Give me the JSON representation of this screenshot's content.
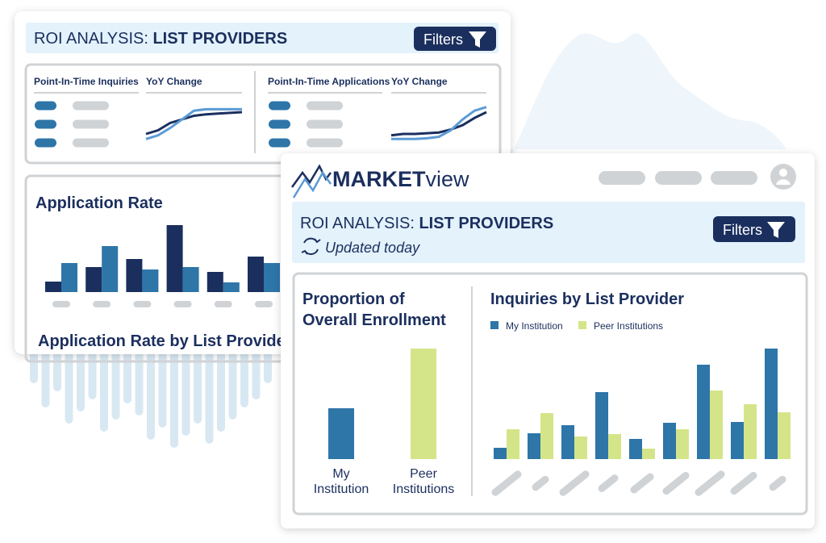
{
  "back_window": {
    "title": {
      "prefix": "ROI ANALYSIS:",
      "emphasis": "LIST PROVIDERS"
    },
    "filters": "Filters",
    "panels": [
      {
        "label": "Point-In-Time Inquiries",
        "trend_label": "YoY Change",
        "trend": [
          {
            "color": "#1b2f5e",
            "values": [
              10,
              15,
              25,
              30,
              35,
              37,
              38,
              39,
              40
            ]
          },
          {
            "color": "#5b9bd5",
            "values": [
              3,
              8,
              18,
              30,
              42,
              44,
              44,
              44,
              44
            ]
          }
        ]
      },
      {
        "label": "Point-In-Time Applications",
        "trend_label": "YoY Change",
        "trend": [
          {
            "color": "#1b2f5e",
            "values": [
              8,
              10,
              10,
              11,
              12,
              16,
              22,
              32,
              40
            ]
          },
          {
            "color": "#5b9bd5",
            "values": [
              3,
              3,
              3,
              4,
              6,
              15,
              30,
              42,
              47
            ]
          }
        ]
      }
    ],
    "chart": {
      "type": "bar",
      "title": "Application Rate",
      "series": [
        {
          "color": "#1b2f5e",
          "values": [
            13,
            31,
            41,
            83,
            25,
            44
          ]
        },
        {
          "color": "#2e75a8",
          "values": [
            36,
            57,
            28,
            31,
            12,
            36
          ]
        }
      ]
    },
    "subtitle": "Application Rate by List Provider"
  },
  "front_window": {
    "logo": {
      "bold": "MARKET",
      "light": "view"
    },
    "title": {
      "prefix": "ROI ANALYSIS:",
      "emphasis": "LIST PROVIDERS"
    },
    "status": "Updated today",
    "filters": "Filters",
    "enrollment": {
      "type": "bar",
      "title": [
        "Proportion of",
        "Overall Enrollment"
      ],
      "categories": [
        [
          "My",
          "Institution"
        ],
        [
          "Peer",
          "Institutions"
        ]
      ],
      "values": [
        63,
        137
      ],
      "colors": [
        "#2e75a8",
        "#d4e589"
      ]
    },
    "inquiries": {
      "type": "bar",
      "title": "Inquiries by List Provider",
      "series": [
        {
          "name": "My Institution",
          "color": "#2e75a8",
          "values": [
            14,
            32,
            42,
            83,
            25,
            45,
            117,
            46,
            137
          ]
        },
        {
          "name": "Peer Institutions",
          "color": "#d4e589",
          "values": [
            37,
            57,
            28,
            31,
            13,
            37,
            85,
            68,
            58
          ]
        }
      ]
    }
  }
}
